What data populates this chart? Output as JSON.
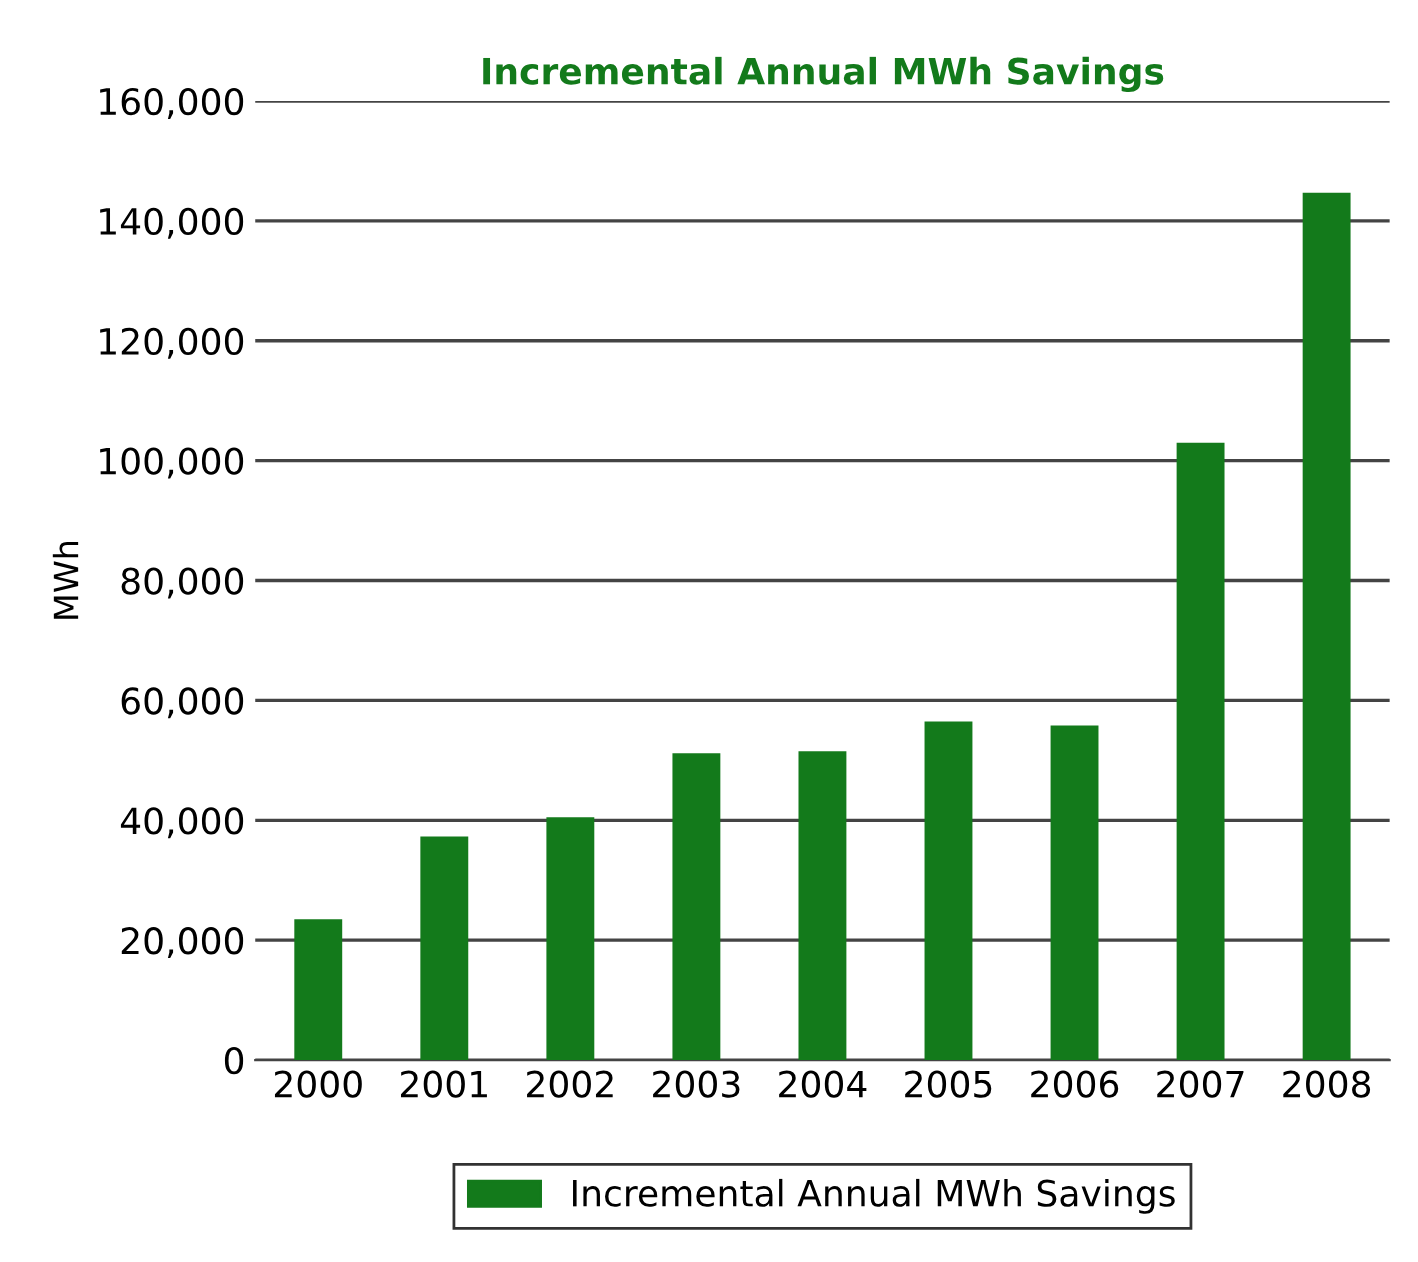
{
  "chart_data": {
    "type": "bar",
    "title": "Incremental Annual MWh Savings",
    "ylabel": "MWh",
    "categories": [
      "2000",
      "2001",
      "2002",
      "2003",
      "2004",
      "2005",
      "2006",
      "2007",
      "2008"
    ],
    "series": [
      {
        "name": "Incremental Annual MWh Savings",
        "color": "#137a1b",
        "values": [
          23500,
          37300,
          40500,
          51200,
          51500,
          56500,
          55800,
          103000,
          144700
        ]
      }
    ],
    "ylim": [
      0,
      160000
    ],
    "yticks": [
      {
        "value": 0,
        "label": "0"
      },
      {
        "value": 20000,
        "label": "20,000"
      },
      {
        "value": 40000,
        "label": "40,000"
      },
      {
        "value": 60000,
        "label": "60,000"
      },
      {
        "value": 80000,
        "label": "80,000"
      },
      {
        "value": 100000,
        "label": "100,000"
      },
      {
        "value": 120000,
        "label": "120,000"
      },
      {
        "value": 140000,
        "label": "140,000"
      },
      {
        "value": 160000,
        "label": "160,000"
      }
    ],
    "grid": "y",
    "legend": "bottom"
  }
}
